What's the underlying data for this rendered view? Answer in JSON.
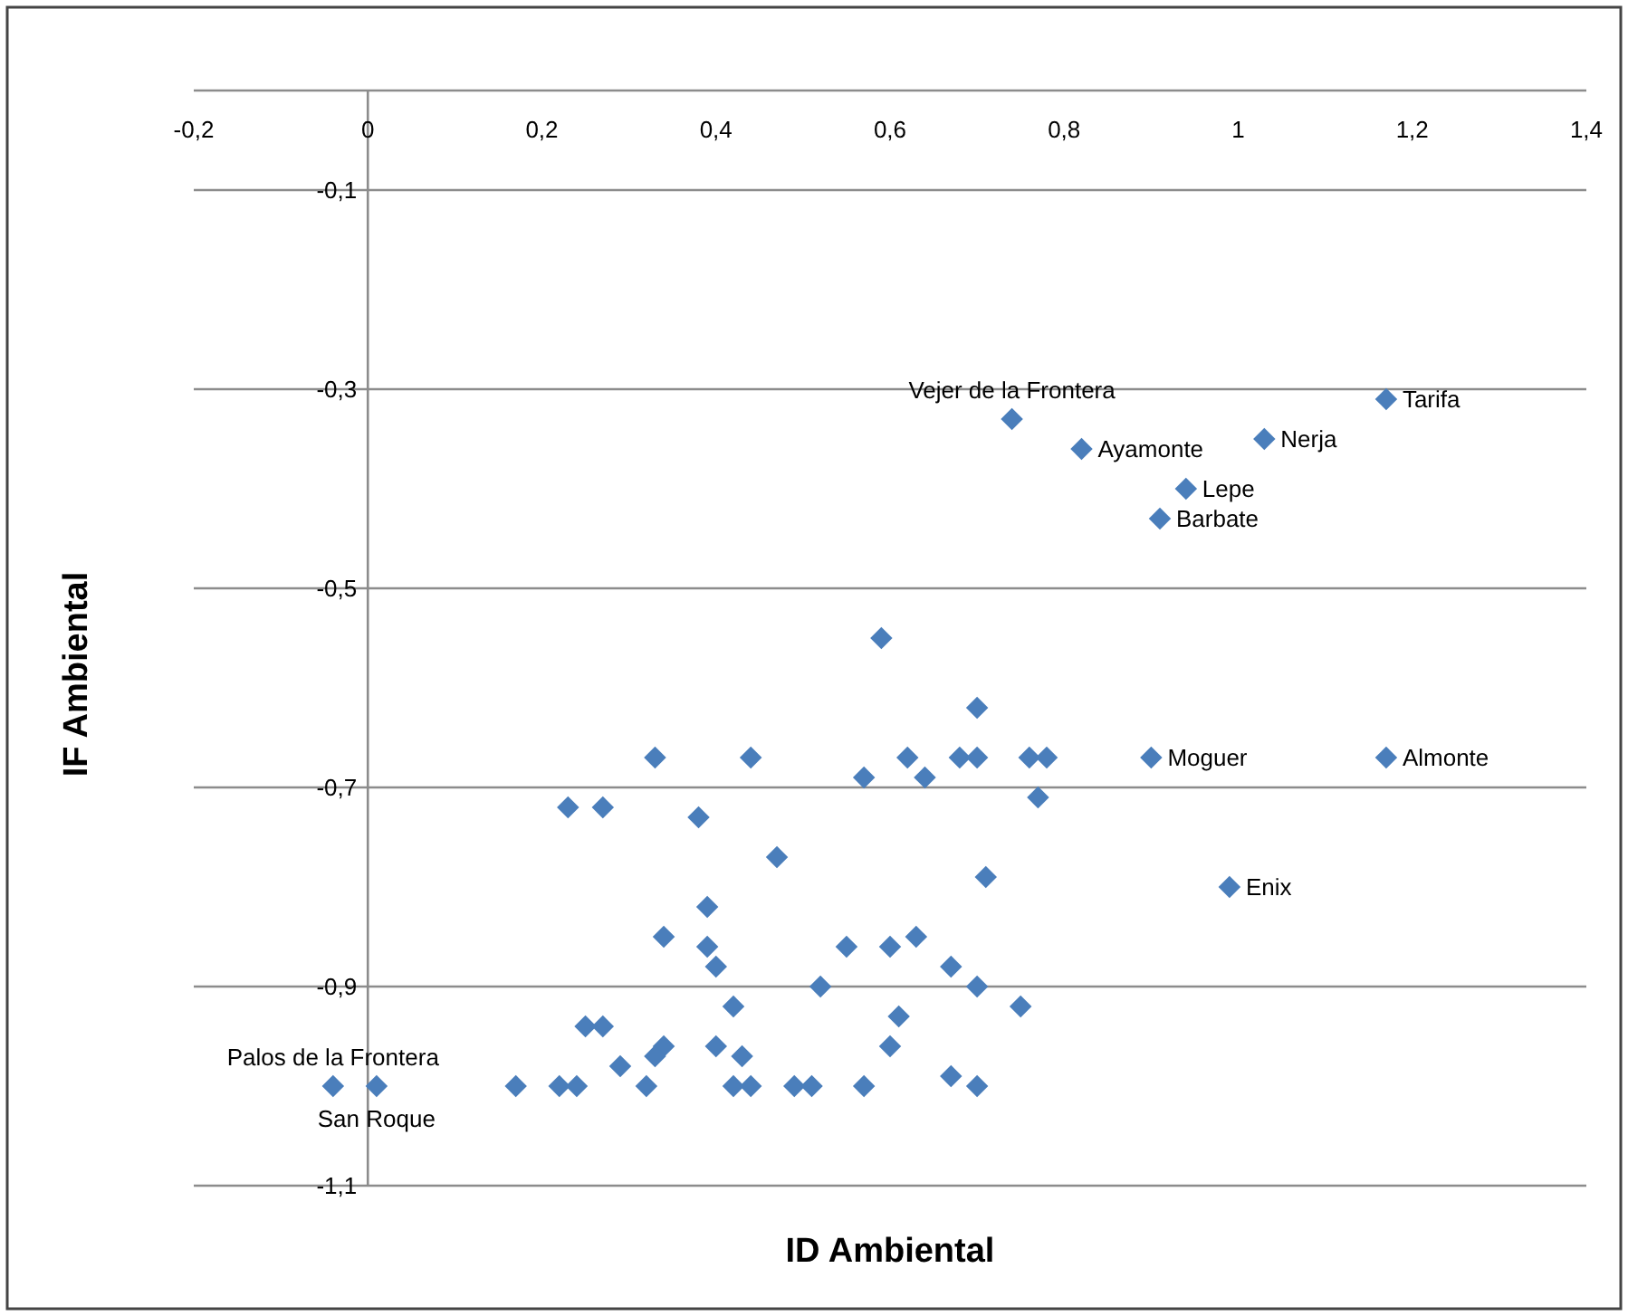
{
  "chart_data": {
    "type": "scatter",
    "xlabel": "ID Ambiental",
    "ylabel": "IF Ambiental",
    "xlim": [
      -0.2,
      1.4
    ],
    "ylim": [
      -1.1,
      0
    ],
    "xticks": [
      {
        "value": -0.2,
        "label": "-0,2"
      },
      0,
      {
        "value": 0.2,
        "label": "0,2"
      },
      {
        "value": 0.4,
        "label": "0,4"
      },
      {
        "value": 0.6,
        "label": "0,6"
      },
      {
        "value": 0.8,
        "label": "0,8"
      },
      1,
      {
        "value": 1.2,
        "label": "1,2"
      },
      {
        "value": 1.4,
        "label": "1,4"
      }
    ],
    "yticks": [
      {
        "value": -1.1,
        "label": "-1,1"
      },
      {
        "value": -0.9,
        "label": "-0,9"
      },
      {
        "value": -0.7,
        "label": "-0,7"
      },
      {
        "value": -0.5,
        "label": "-0,5"
      },
      {
        "value": -0.3,
        "label": "-0,3"
      },
      {
        "value": -0.1,
        "label": "-0,1"
      }
    ],
    "grid": "y",
    "marker": "diamond",
    "series": [
      {
        "color": "#4a7ebb",
        "x": [
          0.74,
          0.82,
          1.03,
          1.17,
          0.94,
          0.91,
          0.9,
          1.17,
          0.99,
          -0.04,
          0.01,
          0.59,
          0.7,
          0.33,
          0.44,
          0.62,
          0.68,
          0.7,
          0.76,
          0.78,
          0.57,
          0.64,
          0.77,
          0.23,
          0.27,
          0.38,
          0.47,
          0.71,
          0.39,
          0.34,
          0.39,
          0.4,
          0.52,
          0.42,
          0.25,
          0.27,
          0.34,
          0.33,
          0.29,
          0.4,
          0.43,
          0.42,
          0.44,
          0.32,
          0.17,
          0.22,
          0.24,
          0.49,
          0.51,
          0.55,
          0.6,
          0.63,
          0.67,
          0.7,
          0.75,
          0.61,
          0.6,
          0.57,
          0.67,
          0.7
        ],
        "values": [
          -0.33,
          -0.36,
          -0.35,
          -0.31,
          -0.4,
          -0.43,
          -0.67,
          -0.67,
          -0.8,
          -1.0,
          -1.0,
          -0.55,
          -0.62,
          -0.67,
          -0.67,
          -0.67,
          -0.67,
          -0.67,
          -0.67,
          -0.67,
          -0.69,
          -0.69,
          -0.71,
          -0.72,
          -0.72,
          -0.73,
          -0.77,
          -0.79,
          -0.82,
          -0.85,
          -0.86,
          -0.88,
          -0.9,
          -0.92,
          -0.94,
          -0.94,
          -0.96,
          -0.97,
          -0.98,
          -0.96,
          -0.97,
          -1.0,
          -1.0,
          -1.0,
          -1.0,
          -1.0,
          -1.0,
          -1.0,
          -1.0,
          -0.86,
          -0.86,
          -0.85,
          -0.88,
          -0.9,
          -0.92,
          -0.93,
          -0.96,
          -1.0,
          -0.99,
          -1.0
        ]
      }
    ],
    "annotations": [
      {
        "text": "Vejer de la Frontera",
        "x": 0.74,
        "y": -0.33
      },
      {
        "text": "Ayamonte",
        "x": 0.82,
        "y": -0.36
      },
      {
        "text": "Nerja",
        "x": 1.03,
        "y": -0.35
      },
      {
        "text": "Tarifa",
        "x": 1.17,
        "y": -0.31
      },
      {
        "text": "Lepe",
        "x": 0.94,
        "y": -0.4
      },
      {
        "text": "Barbate",
        "x": 0.91,
        "y": -0.43
      },
      {
        "text": "Moguer",
        "x": 0.9,
        "y": -0.67
      },
      {
        "text": "Almonte",
        "x": 1.17,
        "y": -0.67
      },
      {
        "text": "Enix",
        "x": 0.99,
        "y": -0.8
      },
      {
        "text": "Palos de la Frontera",
        "x": -0.04,
        "y": -1.0
      },
      {
        "text": "San Roque",
        "x": 0.01,
        "y": -1.0
      }
    ]
  }
}
